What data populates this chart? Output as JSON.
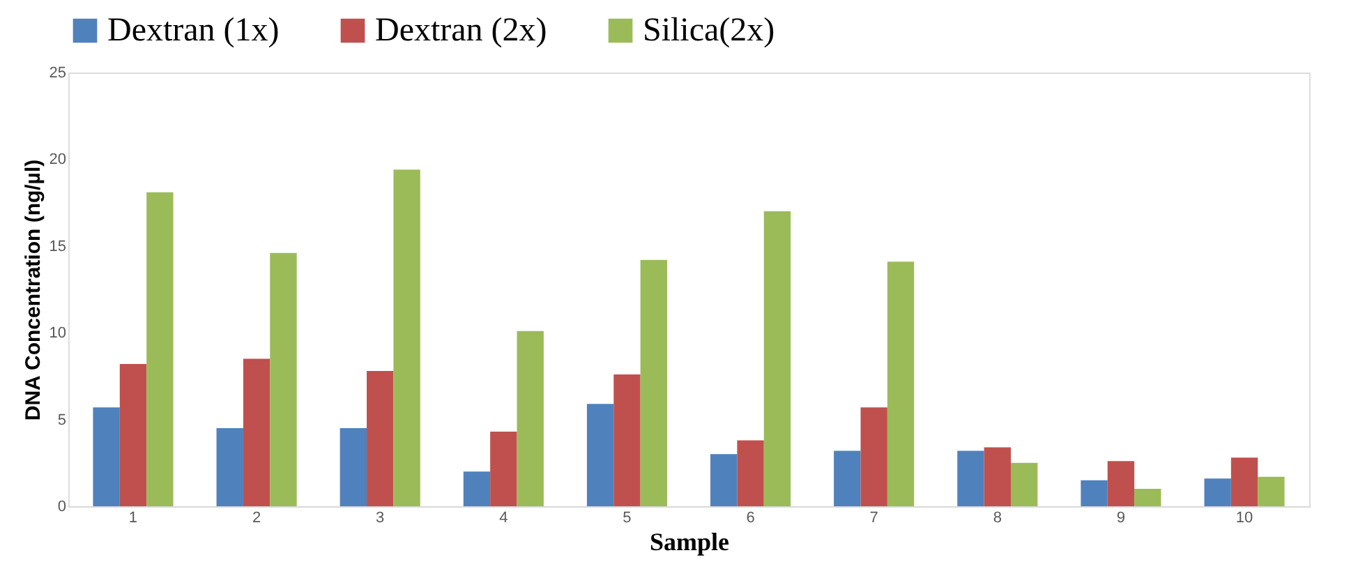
{
  "chart_data": {
    "type": "bar",
    "xlabel": "Sample",
    "ylabel": "DNA Concentration (ng/µl)",
    "categories": [
      "1",
      "2",
      "3",
      "4",
      "5",
      "6",
      "7",
      "8",
      "9",
      "10"
    ],
    "series": [
      {
        "name": "Dextran (1x)",
        "color": "#4f81bd",
        "values": [
          5.7,
          4.5,
          4.5,
          2.0,
          5.9,
          3.0,
          3.2,
          3.2,
          1.5,
          1.6
        ]
      },
      {
        "name": "Dextran (2x)",
        "color": "#c0504d",
        "values": [
          8.2,
          8.5,
          7.8,
          4.3,
          7.6,
          3.8,
          5.7,
          3.4,
          2.6,
          2.8
        ]
      },
      {
        "name": "Silica(2x)",
        "color": "#9bbb59",
        "values": [
          18.1,
          14.6,
          19.4,
          10.1,
          14.2,
          17.0,
          14.1,
          2.5,
          1.0,
          1.7
        ]
      }
    ],
    "ylim": [
      0,
      25
    ],
    "yticks": [
      0,
      5,
      10,
      15,
      20,
      25
    ],
    "grid": false,
    "legend": "top"
  }
}
